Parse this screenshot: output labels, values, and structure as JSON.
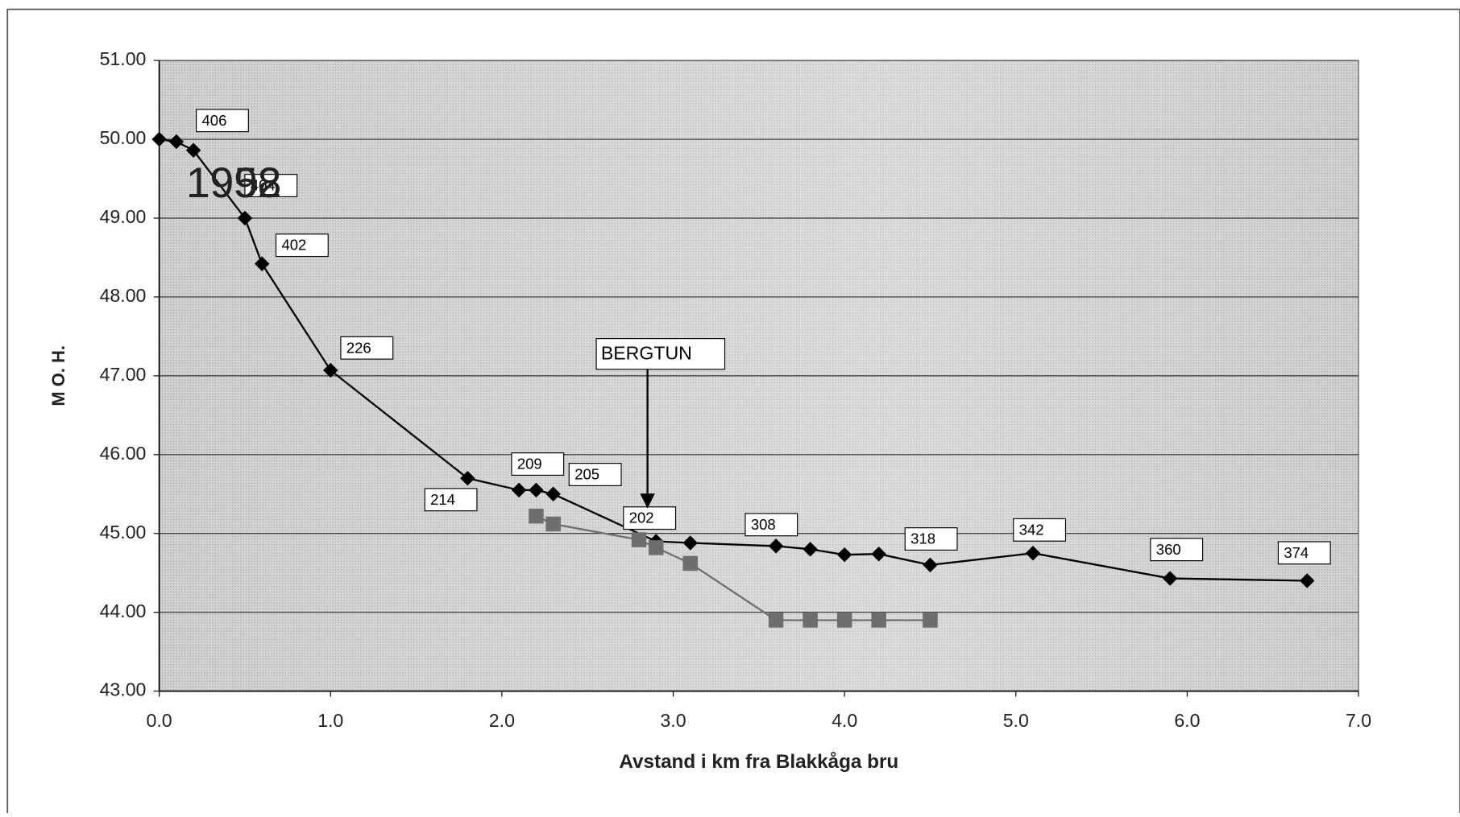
{
  "chart_data": {
    "type": "line",
    "xlabel": "Avstand i km fra Blakkåga bru",
    "ylabel": "M O. H.",
    "xlim": [
      0,
      7
    ],
    "ylim": [
      43,
      51
    ],
    "xticks": [
      {
        "value": 0,
        "label": "0.0"
      },
      {
        "value": 1,
        "label": "1.0"
      },
      {
        "value": 2,
        "label": "2.0"
      },
      {
        "value": 3,
        "label": "3.0"
      },
      {
        "value": 4,
        "label": "4.0"
      },
      {
        "value": 5,
        "label": "5.0"
      },
      {
        "value": 6,
        "label": "6.0"
      },
      {
        "value": 7,
        "label": "7.0"
      }
    ],
    "yticks": [
      {
        "value": 43,
        "label": "43.00"
      },
      {
        "value": 44,
        "label": "44.00"
      },
      {
        "value": 45,
        "label": "45.00"
      },
      {
        "value": 46,
        "label": "46.00"
      },
      {
        "value": 47,
        "label": "47.00"
      },
      {
        "value": 48,
        "label": "48.00"
      },
      {
        "value": 49,
        "label": "49.00"
      },
      {
        "value": 50,
        "label": "50.00"
      },
      {
        "value": 51,
        "label": "51.00"
      }
    ],
    "grid": true,
    "series": [
      {
        "name": "1998",
        "color": "#000000",
        "marker": "diamond",
        "x": [
          0,
          0.1,
          0.2,
          0.5,
          0.6,
          1.0,
          1.8,
          2.1,
          2.2,
          2.3,
          2.9,
          3.1,
          3.6,
          3.8,
          4.0,
          4.2,
          4.5,
          5.1,
          5.9,
          6.7
        ],
        "values": [
          50.0,
          49.97,
          49.86,
          49.0,
          48.42,
          47.07,
          45.7,
          45.55,
          45.55,
          45.5,
          44.9,
          44.88,
          44.84,
          44.8,
          44.73,
          44.74,
          44.6,
          44.75,
          44.43,
          44.4
        ],
        "station_labels": [
          null,
          null,
          "406",
          "404",
          "402",
          "226",
          "214",
          "209",
          null,
          "205",
          "202",
          null,
          "308",
          null,
          null,
          null,
          "318",
          "342",
          "360",
          "374"
        ]
      },
      {
        "name": "1952",
        "color": "#6e6e6e",
        "marker": "square",
        "x": [
          2.2,
          2.3,
          2.8,
          2.9,
          3.1,
          3.6,
          3.8,
          4.0,
          4.2,
          4.5
        ],
        "values": [
          45.22,
          45.12,
          44.92,
          44.82,
          44.62,
          43.9,
          43.9,
          43.9,
          43.9,
          43.9
        ]
      }
    ],
    "annotations": [
      {
        "text": "BERGTUN",
        "x": 2.85
      }
    ]
  }
}
